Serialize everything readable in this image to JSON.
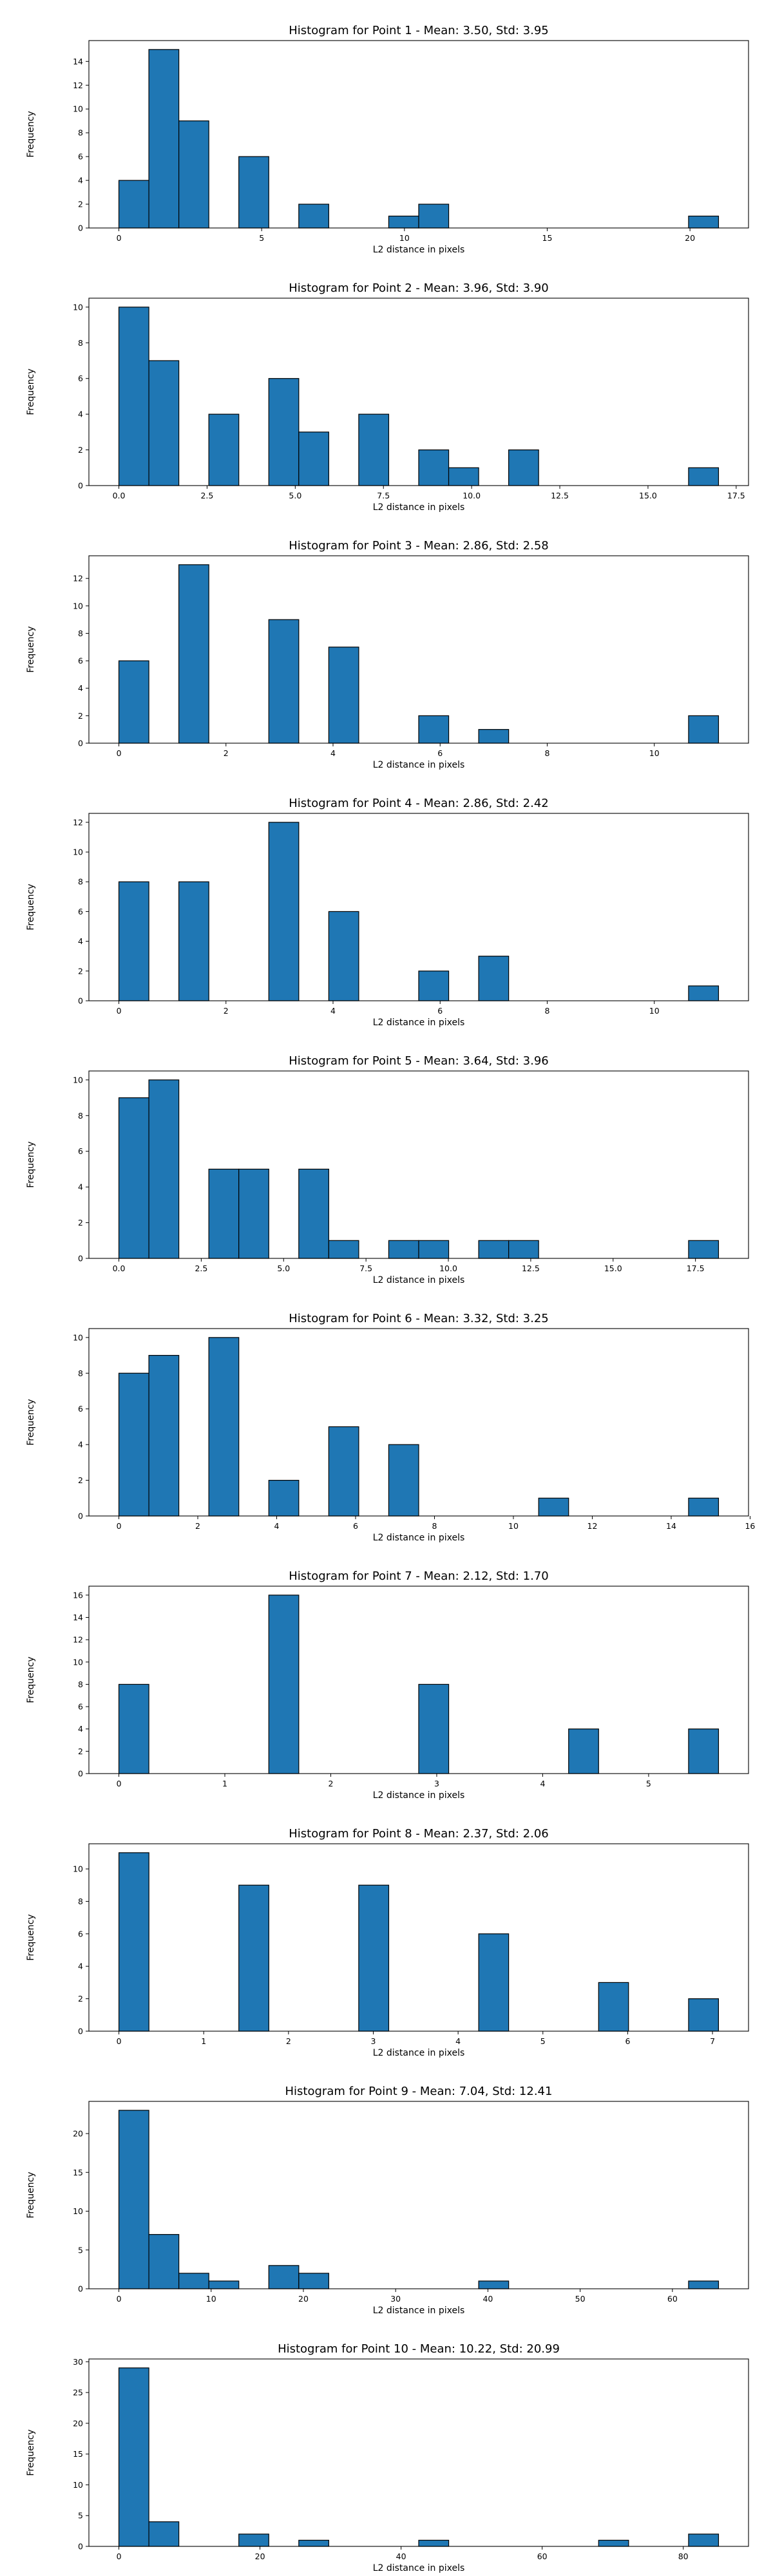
{
  "style": {
    "bar_color": "#1f77b4",
    "edge_color": "#000000",
    "grid": false
  },
  "chart_data": [
    {
      "type": "bar",
      "title": "Histogram for Point 1 - Mean: 3.50, Std: 3.95",
      "xlabel": "L2 distance in pixels",
      "ylabel": "Frequency",
      "xlim": [
        -1.05,
        22.05
      ],
      "ylim": [
        0,
        15.75
      ],
      "xticks": [
        0,
        5,
        10,
        15,
        20
      ],
      "xtick_labels": [
        "0",
        "5",
        "10",
        "15",
        "20"
      ],
      "yticks": [
        0,
        2,
        4,
        6,
        8,
        10,
        12,
        14
      ],
      "ytick_labels": [
        "0",
        "2",
        "4",
        "6",
        "8",
        "10",
        "12",
        "14"
      ],
      "bins": [
        {
          "x0": 0.0,
          "x1": 1.05,
          "count": 4
        },
        {
          "x0": 1.05,
          "x1": 2.1,
          "count": 15
        },
        {
          "x0": 2.1,
          "x1": 3.15,
          "count": 9
        },
        {
          "x0": 4.2,
          "x1": 5.25,
          "count": 6
        },
        {
          "x0": 6.3,
          "x1": 7.35,
          "count": 2
        },
        {
          "x0": 9.45,
          "x1": 10.5,
          "count": 1
        },
        {
          "x0": 10.5,
          "x1": 11.55,
          "count": 2
        },
        {
          "x0": 19.95,
          "x1": 21.0,
          "count": 1
        }
      ]
    },
    {
      "type": "bar",
      "title": "Histogram for Point 2 - Mean: 3.96, Std: 3.90",
      "xlabel": "L2 distance in pixels",
      "ylabel": "Frequency",
      "xlim": [
        -0.85,
        17.85
      ],
      "ylim": [
        0,
        10.5
      ],
      "xticks": [
        0,
        2.5,
        5,
        7.5,
        10,
        12.5,
        15,
        17.5
      ],
      "xtick_labels": [
        "0.0",
        "2.5",
        "5.0",
        "7.5",
        "10.0",
        "12.5",
        "15.0",
        "17.5"
      ],
      "yticks": [
        0,
        2,
        4,
        6,
        8,
        10
      ],
      "ytick_labels": [
        "0",
        "2",
        "4",
        "6",
        "8",
        "10"
      ],
      "bins": [
        {
          "x0": 0.0,
          "x1": 0.85,
          "count": 10
        },
        {
          "x0": 0.85,
          "x1": 1.7,
          "count": 7
        },
        {
          "x0": 2.55,
          "x1": 3.4,
          "count": 4
        },
        {
          "x0": 4.25,
          "x1": 5.1,
          "count": 6
        },
        {
          "x0": 5.1,
          "x1": 5.95,
          "count": 3
        },
        {
          "x0": 6.8,
          "x1": 7.65,
          "count": 4
        },
        {
          "x0": 8.5,
          "x1": 9.35,
          "count": 2
        },
        {
          "x0": 9.35,
          "x1": 10.2,
          "count": 1
        },
        {
          "x0": 11.05,
          "x1": 11.9,
          "count": 2
        },
        {
          "x0": 16.15,
          "x1": 17.0,
          "count": 1
        }
      ]
    },
    {
      "type": "bar",
      "title": "Histogram for Point 3 - Mean: 2.86, Std: 2.58",
      "xlabel": "L2 distance in pixels",
      "ylabel": "Frequency",
      "xlim": [
        -0.56,
        11.76
      ],
      "ylim": [
        0,
        13.65
      ],
      "xticks": [
        0,
        2,
        4,
        6,
        8,
        10
      ],
      "xtick_labels": [
        "0",
        "2",
        "4",
        "6",
        "8",
        "10"
      ],
      "yticks": [
        0,
        2,
        4,
        6,
        8,
        10,
        12
      ],
      "ytick_labels": [
        "0",
        "2",
        "4",
        "6",
        "8",
        "10",
        "12"
      ],
      "bins": [
        {
          "x0": 0.0,
          "x1": 0.56,
          "count": 6
        },
        {
          "x0": 1.12,
          "x1": 1.68,
          "count": 13
        },
        {
          "x0": 2.8,
          "x1": 3.36,
          "count": 9
        },
        {
          "x0": 3.92,
          "x1": 4.48,
          "count": 7
        },
        {
          "x0": 5.6,
          "x1": 6.16,
          "count": 2
        },
        {
          "x0": 6.72,
          "x1": 7.28,
          "count": 1
        },
        {
          "x0": 10.64,
          "x1": 11.2,
          "count": 2
        }
      ]
    },
    {
      "type": "bar",
      "title": "Histogram for Point 4 - Mean: 2.86, Std: 2.42",
      "xlabel": "L2 distance in pixels",
      "ylabel": "Frequency",
      "xlim": [
        -0.56,
        11.76
      ],
      "ylim": [
        0,
        12.6
      ],
      "xticks": [
        0,
        2,
        4,
        6,
        8,
        10
      ],
      "xtick_labels": [
        "0",
        "2",
        "4",
        "6",
        "8",
        "10"
      ],
      "yticks": [
        0,
        2,
        4,
        6,
        8,
        10,
        12
      ],
      "ytick_labels": [
        "0",
        "2",
        "4",
        "6",
        "8",
        "10",
        "12"
      ],
      "bins": [
        {
          "x0": 0.0,
          "x1": 0.56,
          "count": 8
        },
        {
          "x0": 1.12,
          "x1": 1.68,
          "count": 8
        },
        {
          "x0": 2.8,
          "x1": 3.36,
          "count": 12
        },
        {
          "x0": 3.92,
          "x1": 4.48,
          "count": 6
        },
        {
          "x0": 5.6,
          "x1": 6.16,
          "count": 2
        },
        {
          "x0": 6.72,
          "x1": 7.28,
          "count": 3
        },
        {
          "x0": 10.64,
          "x1": 11.2,
          "count": 1
        }
      ]
    },
    {
      "type": "bar",
      "title": "Histogram for Point 5 - Mean: 3.64, Std: 3.96",
      "xlabel": "L2 distance in pixels",
      "ylabel": "Frequency",
      "xlim": [
        -0.91,
        19.11
      ],
      "ylim": [
        0,
        10.5
      ],
      "xticks": [
        0,
        2.5,
        5,
        7.5,
        10,
        12.5,
        15,
        17.5
      ],
      "xtick_labels": [
        "0.0",
        "2.5",
        "5.0",
        "7.5",
        "10.0",
        "12.5",
        "15.0",
        "17.5"
      ],
      "yticks": [
        0,
        2,
        4,
        6,
        8,
        10
      ],
      "ytick_labels": [
        "0",
        "2",
        "4",
        "6",
        "8",
        "10"
      ],
      "bins": [
        {
          "x0": 0.0,
          "x1": 0.91,
          "count": 9
        },
        {
          "x0": 0.91,
          "x1": 1.82,
          "count": 10
        },
        {
          "x0": 2.73,
          "x1": 3.64,
          "count": 5
        },
        {
          "x0": 3.64,
          "x1": 4.55,
          "count": 5
        },
        {
          "x0": 5.46,
          "x1": 6.37,
          "count": 5
        },
        {
          "x0": 6.37,
          "x1": 7.28,
          "count": 1
        },
        {
          "x0": 8.19,
          "x1": 9.1,
          "count": 1
        },
        {
          "x0": 9.1,
          "x1": 10.01,
          "count": 1
        },
        {
          "x0": 10.92,
          "x1": 11.83,
          "count": 1
        },
        {
          "x0": 11.83,
          "x1": 12.74,
          "count": 1
        },
        {
          "x0": 17.29,
          "x1": 18.2,
          "count": 1
        }
      ]
    },
    {
      "type": "bar",
      "title": "Histogram for Point 6 - Mean: 3.32, Std: 3.25",
      "xlabel": "L2 distance in pixels",
      "ylabel": "Frequency",
      "xlim": [
        -0.76,
        15.96
      ],
      "ylim": [
        0,
        10.5
      ],
      "xticks": [
        0,
        2,
        4,
        6,
        8,
        10,
        12,
        14,
        16
      ],
      "xtick_labels": [
        "0",
        "2",
        "4",
        "6",
        "8",
        "10",
        "12",
        "14",
        "16"
      ],
      "yticks": [
        0,
        2,
        4,
        6,
        8,
        10
      ],
      "ytick_labels": [
        "0",
        "2",
        "4",
        "6",
        "8",
        "10"
      ],
      "bins": [
        {
          "x0": 0.0,
          "x1": 0.76,
          "count": 8
        },
        {
          "x0": 0.76,
          "x1": 1.52,
          "count": 9
        },
        {
          "x0": 2.28,
          "x1": 3.04,
          "count": 10
        },
        {
          "x0": 3.8,
          "x1": 4.56,
          "count": 2
        },
        {
          "x0": 5.32,
          "x1": 6.08,
          "count": 5
        },
        {
          "x0": 6.84,
          "x1": 7.6,
          "count": 4
        },
        {
          "x0": 10.64,
          "x1": 11.4,
          "count": 1
        },
        {
          "x0": 14.44,
          "x1": 15.2,
          "count": 1
        }
      ]
    },
    {
      "type": "bar",
      "title": "Histogram for Point 7 - Mean: 2.12, Std: 1.70",
      "xlabel": "L2 distance in pixels",
      "ylabel": "Frequency",
      "xlim": [
        -0.283,
        5.943
      ],
      "ylim": [
        0,
        16.8
      ],
      "xticks": [
        0,
        1,
        2,
        3,
        4,
        5
      ],
      "xtick_labels": [
        "0",
        "1",
        "2",
        "3",
        "4",
        "5"
      ],
      "yticks": [
        0,
        2,
        4,
        6,
        8,
        10,
        12,
        14,
        16
      ],
      "ytick_labels": [
        "0",
        "2",
        "4",
        "6",
        "8",
        "10",
        "12",
        "14",
        "16"
      ],
      "bins": [
        {
          "x0": 0.0,
          "x1": 0.283,
          "count": 8
        },
        {
          "x0": 1.415,
          "x1": 1.698,
          "count": 16
        },
        {
          "x0": 2.83,
          "x1": 3.113,
          "count": 8
        },
        {
          "x0": 4.245,
          "x1": 4.528,
          "count": 4
        },
        {
          "x0": 5.377,
          "x1": 5.66,
          "count": 4
        }
      ]
    },
    {
      "type": "bar",
      "title": "Histogram for Point 8 - Mean: 2.37, Std: 2.06",
      "xlabel": "L2 distance in pixels",
      "ylabel": "Frequency",
      "xlim": [
        -0.354,
        7.425
      ],
      "ylim": [
        0,
        11.55
      ],
      "xticks": [
        0,
        1,
        2,
        3,
        4,
        5,
        6,
        7
      ],
      "xtick_labels": [
        "0",
        "1",
        "2",
        "3",
        "4",
        "5",
        "6",
        "7"
      ],
      "yticks": [
        0,
        2,
        4,
        6,
        8,
        10
      ],
      "ytick_labels": [
        "0",
        "2",
        "4",
        "6",
        "8",
        "10"
      ],
      "bins": [
        {
          "x0": 0.0,
          "x1": 0.354,
          "count": 11
        },
        {
          "x0": 1.414,
          "x1": 1.768,
          "count": 9
        },
        {
          "x0": 2.828,
          "x1": 3.182,
          "count": 9
        },
        {
          "x0": 4.243,
          "x1": 4.596,
          "count": 6
        },
        {
          "x0": 5.657,
          "x1": 6.01,
          "count": 3
        },
        {
          "x0": 6.718,
          "x1": 7.071,
          "count": 2
        }
      ]
    },
    {
      "type": "bar",
      "title": "Histogram for Point 9 - Mean: 7.04, Std: 12.41",
      "xlabel": "L2 distance in pixels",
      "ylabel": "Frequency",
      "xlim": [
        -3.25,
        68.25
      ],
      "ylim": [
        0,
        24.15
      ],
      "xticks": [
        0,
        10,
        20,
        30,
        40,
        50,
        60
      ],
      "xtick_labels": [
        "0",
        "10",
        "20",
        "30",
        "40",
        "50",
        "60"
      ],
      "yticks": [
        0,
        5,
        10,
        15,
        20
      ],
      "ytick_labels": [
        "0",
        "5",
        "10",
        "15",
        "20"
      ],
      "bins": [
        {
          "x0": 0.0,
          "x1": 3.25,
          "count": 23
        },
        {
          "x0": 3.25,
          "x1": 6.5,
          "count": 7
        },
        {
          "x0": 6.5,
          "x1": 9.75,
          "count": 2
        },
        {
          "x0": 9.75,
          "x1": 13.0,
          "count": 1
        },
        {
          "x0": 16.25,
          "x1": 19.5,
          "count": 3
        },
        {
          "x0": 19.5,
          "x1": 22.75,
          "count": 2
        },
        {
          "x0": 39.0,
          "x1": 42.25,
          "count": 1
        },
        {
          "x0": 61.75,
          "x1": 65.0,
          "count": 1
        }
      ]
    },
    {
      "type": "bar",
      "title": "Histogram for Point 10 - Mean: 10.22, Std: 20.99",
      "xlabel": "L2 distance in pixels",
      "ylabel": "Frequency",
      "xlim": [
        -4.25,
        89.25
      ],
      "ylim": [
        0,
        30.45
      ],
      "xticks": [
        0,
        20,
        40,
        60,
        80
      ],
      "xtick_labels": [
        "0",
        "20",
        "40",
        "60",
        "80"
      ],
      "yticks": [
        0,
        5,
        10,
        15,
        20,
        25,
        30
      ],
      "ytick_labels": [
        "0",
        "5",
        "10",
        "15",
        "20",
        "25",
        "30"
      ],
      "bins": [
        {
          "x0": 0.0,
          "x1": 4.25,
          "count": 29
        },
        {
          "x0": 4.25,
          "x1": 8.5,
          "count": 4
        },
        {
          "x0": 17.0,
          "x1": 21.25,
          "count": 2
        },
        {
          "x0": 25.5,
          "x1": 29.75,
          "count": 1
        },
        {
          "x0": 42.5,
          "x1": 46.75,
          "count": 1
        },
        {
          "x0": 68.0,
          "x1": 72.25,
          "count": 1
        },
        {
          "x0": 80.75,
          "x1": 85.0,
          "count": 2
        }
      ]
    }
  ]
}
